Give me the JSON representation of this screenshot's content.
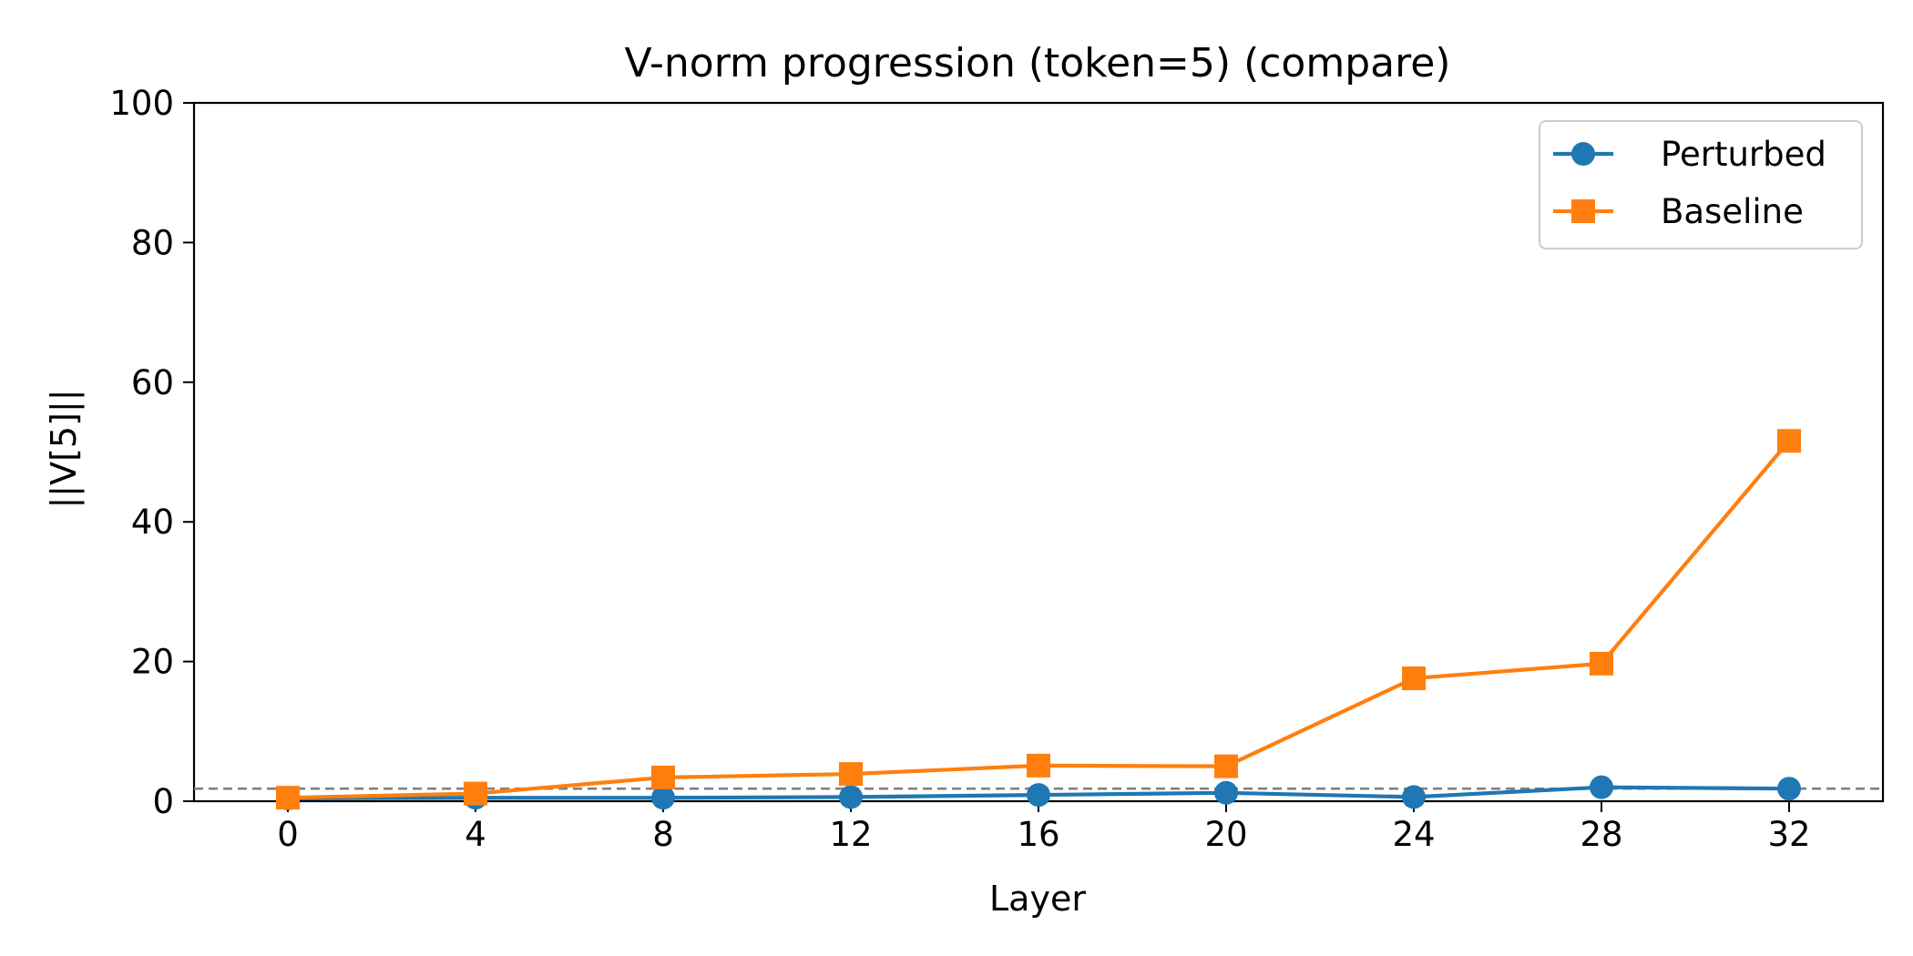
{
  "chart_data": {
    "type": "line",
    "title": "V-norm progression (token=5) (compare)",
    "xlabel": "Layer",
    "ylabel": "||V[5]||",
    "x": [
      0,
      4,
      8,
      12,
      16,
      20,
      24,
      28,
      32
    ],
    "xlim": [
      -2,
      34
    ],
    "ylim": [
      0,
      100
    ],
    "xticks": [
      "0",
      "4",
      "8",
      "12",
      "16",
      "20",
      "24",
      "28",
      "32"
    ],
    "yticks": [
      "0",
      "20",
      "40",
      "60",
      "80",
      "100"
    ],
    "series": [
      {
        "name": "Perturbed",
        "values": [
          0.4,
          0.5,
          0.5,
          0.6,
          0.9,
          1.2,
          0.6,
          2.0,
          1.8
        ],
        "color": "#1f77b4",
        "marker": "circle"
      },
      {
        "name": "Baseline",
        "values": [
          0.5,
          1.1,
          3.4,
          3.9,
          5.1,
          5.0,
          17.6,
          19.7,
          51.6
        ],
        "color": "#ff7f0e",
        "marker": "square"
      }
    ],
    "reference_line": {
      "y": 1.8,
      "style": "dashed",
      "color": "#808080"
    },
    "legend_position": "top-right",
    "grid": false
  }
}
